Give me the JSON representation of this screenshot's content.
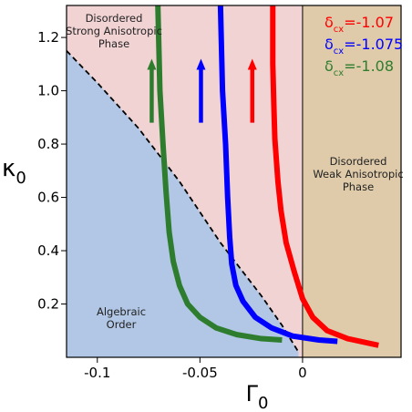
{
  "chart_data": {
    "type": "line",
    "xlabel": "Γ",
    "xlabel_sub": "0",
    "ylabel": "κ",
    "ylabel_sub": "0",
    "xlim": [
      -0.115,
      0.048
    ],
    "ylim": [
      0.0,
      1.32
    ],
    "x_ticks": [
      -0.1,
      -0.05,
      0
    ],
    "x_tick_labels": [
      "-0.1",
      "-0.05",
      "0"
    ],
    "y_ticks": [
      0.2,
      0.4,
      0.6,
      0.8,
      1.0,
      1.2
    ],
    "y_tick_labels": [
      "0.2",
      "0.4",
      "0.6",
      "0.8",
      "1.0",
      "1.2"
    ],
    "grid": false,
    "legend_position": "top-right",
    "regions": [
      {
        "name": "Disordered Strong Anisotropic Phase",
        "lines": [
          "Disordered",
          "Strong Anisotropic",
          "Phase"
        ],
        "color": "#f2d3d4"
      },
      {
        "name": "Disordered Weak Anisotropic Phase",
        "lines": [
          "Disordered",
          "Weak Anisotropic",
          "Phase"
        ],
        "color": "#dfcbaa"
      },
      {
        "name": "Algebraic Order",
        "lines": [
          "Algebraic",
          "Order"
        ],
        "color": "#b1c7e5"
      }
    ],
    "phase_boundary": {
      "style": "dashed",
      "x": [
        -0.115,
        -0.1,
        -0.08,
        -0.06,
        -0.04,
        -0.02,
        -0.01,
        -0.002
      ],
      "y": [
        1.15,
        1.03,
        0.86,
        0.66,
        0.43,
        0.23,
        0.12,
        0.02
      ]
    },
    "vertical_line_x": 0,
    "series": [
      {
        "name": "δ_cx=-1.07",
        "label_main": "δ",
        "label_sub": "cx",
        "label_value": "=-1.07",
        "color": "#ff0000",
        "x": [
          -0.0145,
          -0.0145,
          -0.014,
          -0.0135,
          -0.012,
          -0.0105,
          -0.008,
          -0.004,
          0.0,
          0.005,
          0.012,
          0.022,
          0.037
        ],
        "y": [
          1.32,
          1.1,
          0.95,
          0.82,
          0.66,
          0.55,
          0.43,
          0.32,
          0.22,
          0.15,
          0.1,
          0.07,
          0.045
        ]
      },
      {
        "name": "δ_cx=-1.075",
        "label_main": "δ",
        "label_sub": "cx",
        "label_value": "=-1.075",
        "color": "#0000ff",
        "x": [
          -0.04,
          -0.039,
          -0.0375,
          -0.0365,
          -0.0355,
          -0.0345,
          -0.0325,
          -0.029,
          -0.023,
          -0.015,
          -0.005,
          0.008,
          0.017
        ],
        "y": [
          1.32,
          1.0,
          0.8,
          0.6,
          0.45,
          0.35,
          0.27,
          0.21,
          0.15,
          0.11,
          0.08,
          0.065,
          0.06
        ]
      },
      {
        "name": "δ_cx=-1.08",
        "label_main": "δ",
        "label_sub": "cx",
        "label_value": "=-1.08",
        "color": "#2e7d2e",
        "x": [
          -0.0705,
          -0.0695,
          -0.068,
          -0.0665,
          -0.065,
          -0.063,
          -0.06,
          -0.056,
          -0.05,
          -0.042,
          -0.032,
          -0.02,
          -0.01
        ],
        "y": [
          1.32,
          1.0,
          0.8,
          0.62,
          0.47,
          0.36,
          0.27,
          0.2,
          0.15,
          0.11,
          0.085,
          0.07,
          0.065
        ]
      }
    ],
    "arrows": [
      {
        "x": -0.0735,
        "y_from": 0.88,
        "y_to": 1.12,
        "color": "#2e7d2e"
      },
      {
        "x": -0.0495,
        "y_from": 0.88,
        "y_to": 1.12,
        "color": "#0000ff"
      },
      {
        "x": -0.0245,
        "y_from": 0.88,
        "y_to": 1.12,
        "color": "#ff0000"
      }
    ]
  }
}
